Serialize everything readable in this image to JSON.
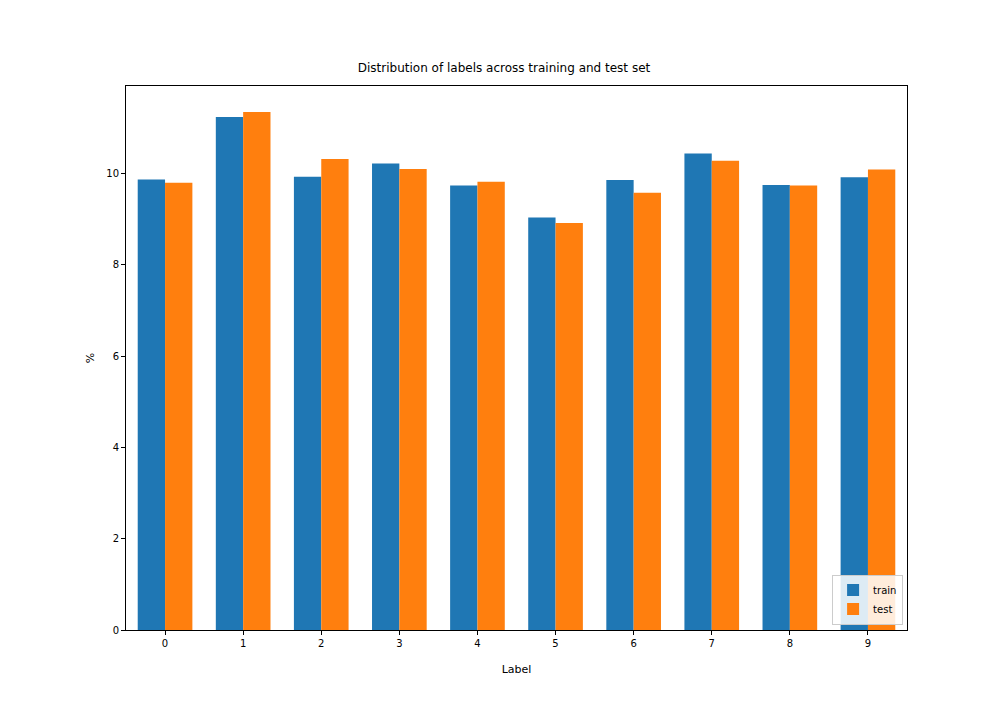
{
  "chart_data": {
    "type": "bar",
    "title": "Distribution of labels across training and test set",
    "x_label": "Label",
    "y_label": "%",
    "categories": [
      "0",
      "1",
      "2",
      "3",
      "4",
      "5",
      "6",
      "7",
      "8",
      "9"
    ],
    "series": [
      {
        "name": "train",
        "color": "#1f77b4",
        "values": [
          9.87,
          11.24,
          9.93,
          10.22,
          9.74,
          9.04,
          9.86,
          10.44,
          9.75,
          9.92
        ]
      },
      {
        "name": "test",
        "color": "#ff7f0e",
        "values": [
          9.8,
          11.35,
          10.32,
          10.1,
          9.82,
          8.92,
          9.58,
          10.28,
          9.74,
          10.09
        ]
      }
    ],
    "ylim": [
      0,
      11.92
    ],
    "yticks": [
      0,
      2,
      4,
      6,
      8,
      10
    ],
    "grid": false,
    "legend": "lower right"
  }
}
